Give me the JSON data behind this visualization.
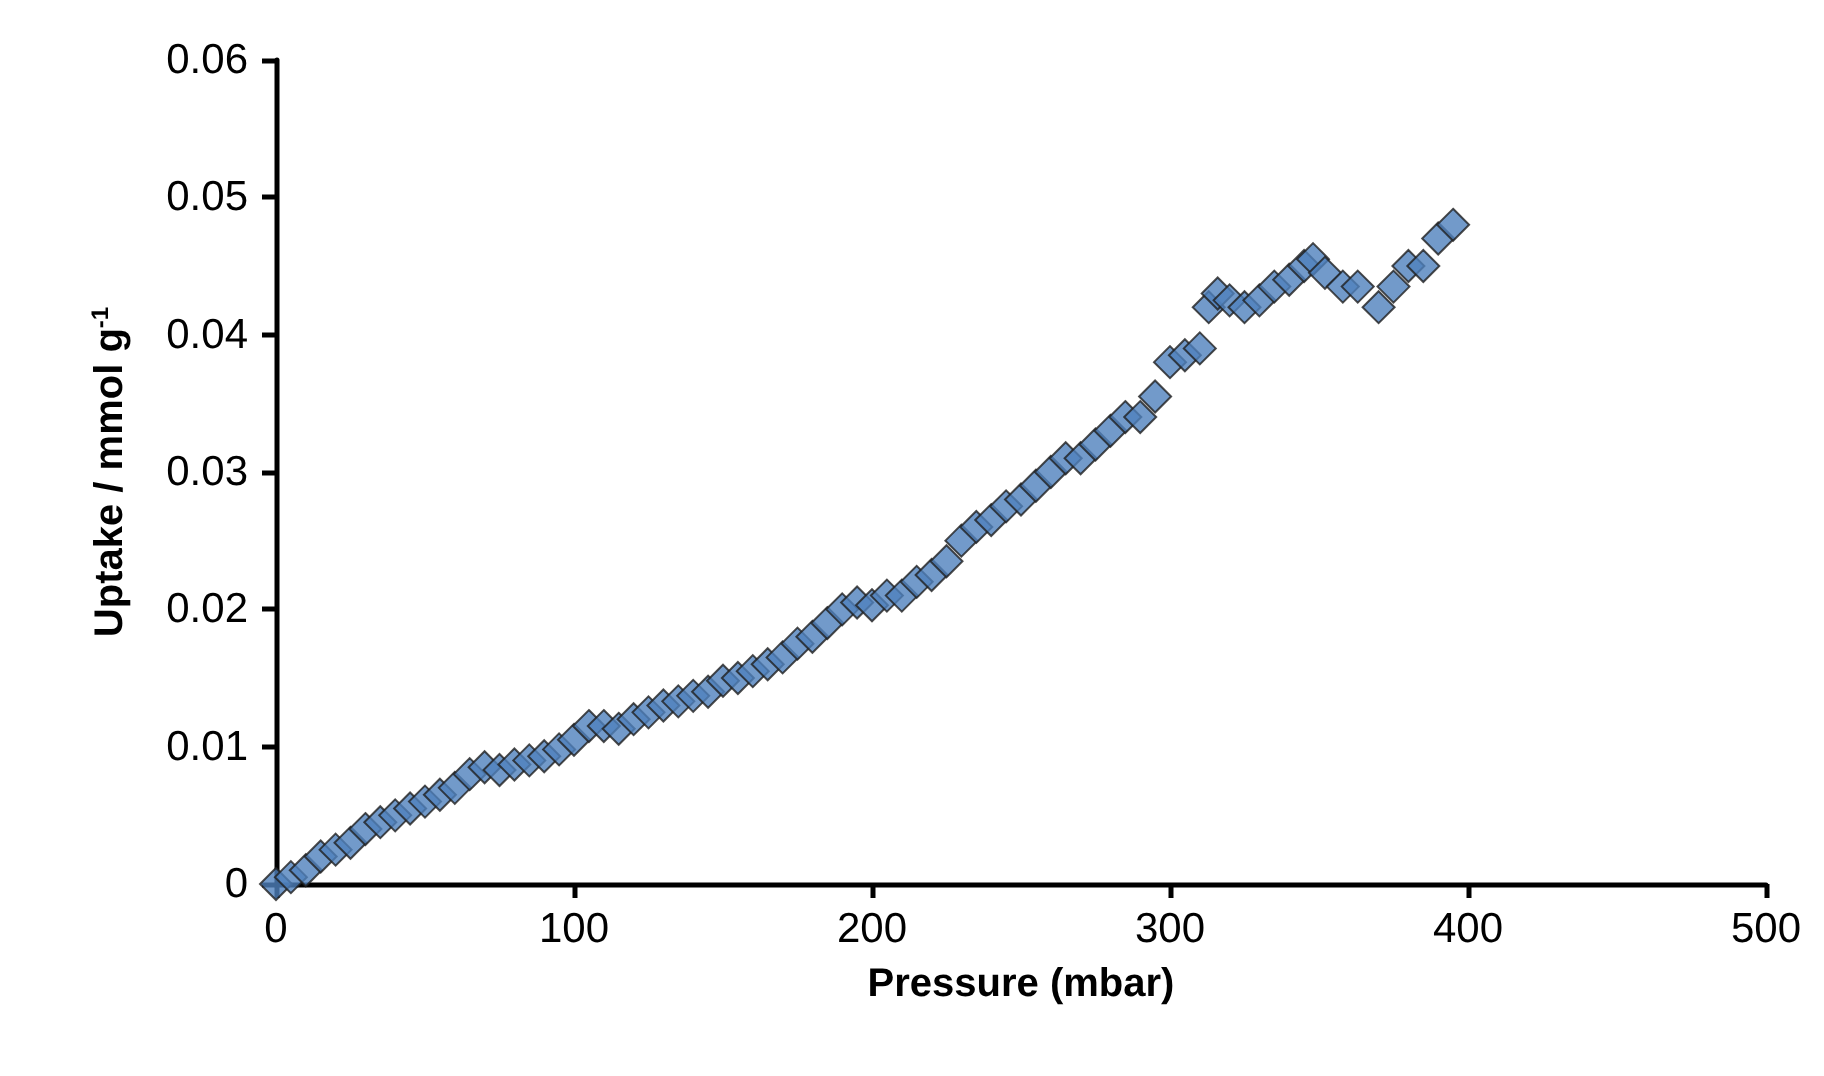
{
  "chart_data": {
    "type": "scatter",
    "xlabel": "Pressure (mbar)",
    "ylabel": "Uptake / mmol g$^{-1}$",
    "marker": "diamond",
    "grid": false,
    "xlim": [
      0,
      500
    ],
    "xticks": [
      0,
      100,
      200,
      300,
      400,
      500
    ],
    "ylim": [
      0,
      0.06
    ],
    "yticks": [
      0,
      0.01,
      0.02,
      0.03,
      0.04,
      0.05,
      0.06
    ],
    "series": [
      {
        "color": "#4f81bd",
        "x": [
          0,
          5,
          10,
          15,
          20,
          25,
          30,
          35,
          40,
          45,
          50,
          55,
          60,
          65,
          70,
          75,
          80,
          85,
          90,
          95,
          100,
          105,
          110,
          115,
          120,
          125,
          130,
          135,
          140,
          145,
          150,
          155,
          160,
          165,
          170,
          175,
          180,
          185,
          190,
          195,
          200,
          205,
          210,
          215,
          220,
          225,
          230,
          235,
          240,
          245,
          250,
          255,
          260,
          265,
          270,
          275,
          280,
          285,
          290,
          295,
          300,
          305,
          310,
          313,
          316,
          320,
          325,
          330,
          335,
          340,
          345,
          348,
          352,
          358,
          363,
          370,
          375,
          380,
          385,
          390,
          395
        ],
        "values": [
          0,
          0.0005,
          0.001,
          0.002,
          0.0025,
          0.003,
          0.004,
          0.0045,
          0.005,
          0.0055,
          0.006,
          0.0065,
          0.007,
          0.008,
          0.0085,
          0.0083,
          0.0087,
          0.009,
          0.0093,
          0.0098,
          0.0105,
          0.0115,
          0.0115,
          0.0113,
          0.012,
          0.0125,
          0.013,
          0.0133,
          0.0137,
          0.014,
          0.0148,
          0.015,
          0.0155,
          0.016,
          0.0165,
          0.0175,
          0.018,
          0.019,
          0.02,
          0.0205,
          0.0203,
          0.021,
          0.021,
          0.022,
          0.0225,
          0.0235,
          0.025,
          0.026,
          0.0265,
          0.0275,
          0.028,
          0.029,
          0.03,
          0.031,
          0.031,
          0.032,
          0.033,
          0.034,
          0.034,
          0.0355,
          0.038,
          0.0385,
          0.039,
          0.042,
          0.043,
          0.0425,
          0.042,
          0.0425,
          0.0435,
          0.044,
          0.045,
          0.0455,
          0.0445,
          0.0435,
          0.0435,
          0.042,
          0.0435,
          0.045,
          0.045,
          0.047,
          0.048
        ]
      }
    ]
  }
}
